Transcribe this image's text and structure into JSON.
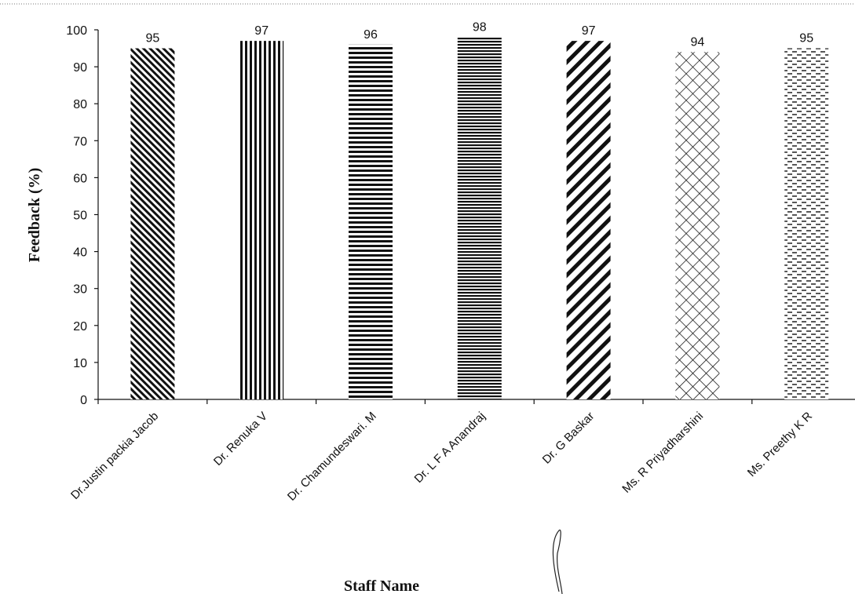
{
  "chart_data": {
    "type": "bar",
    "title": "",
    "xlabel": "Staff Name",
    "ylabel": "Feedback (%)",
    "ylim": [
      0,
      100
    ],
    "yticks": [
      0,
      10,
      20,
      30,
      40,
      50,
      60,
      70,
      80,
      90,
      100
    ],
    "grid": false,
    "legend": "none",
    "categories": [
      "Dr.Justin packia Jacob",
      "Dr. Renuka V",
      "Dr. Chamundeswari. M",
      "Dr. L F A Anandraj",
      "Dr. G Baskar",
      "Ms. R Priyadharshini",
      "Ms. Preethy K R"
    ],
    "values": [
      95,
      97,
      96,
      98,
      97,
      94,
      95
    ],
    "bar_patterns": [
      "diagonal-dense",
      "vertical-lines",
      "horizontal-lines",
      "horizontal-dense",
      "diagonal-wide",
      "crosshatch-diagonal",
      "dashed-horizontal"
    ],
    "colors": {
      "ink": "#111111",
      "background": "#ffffff"
    }
  }
}
